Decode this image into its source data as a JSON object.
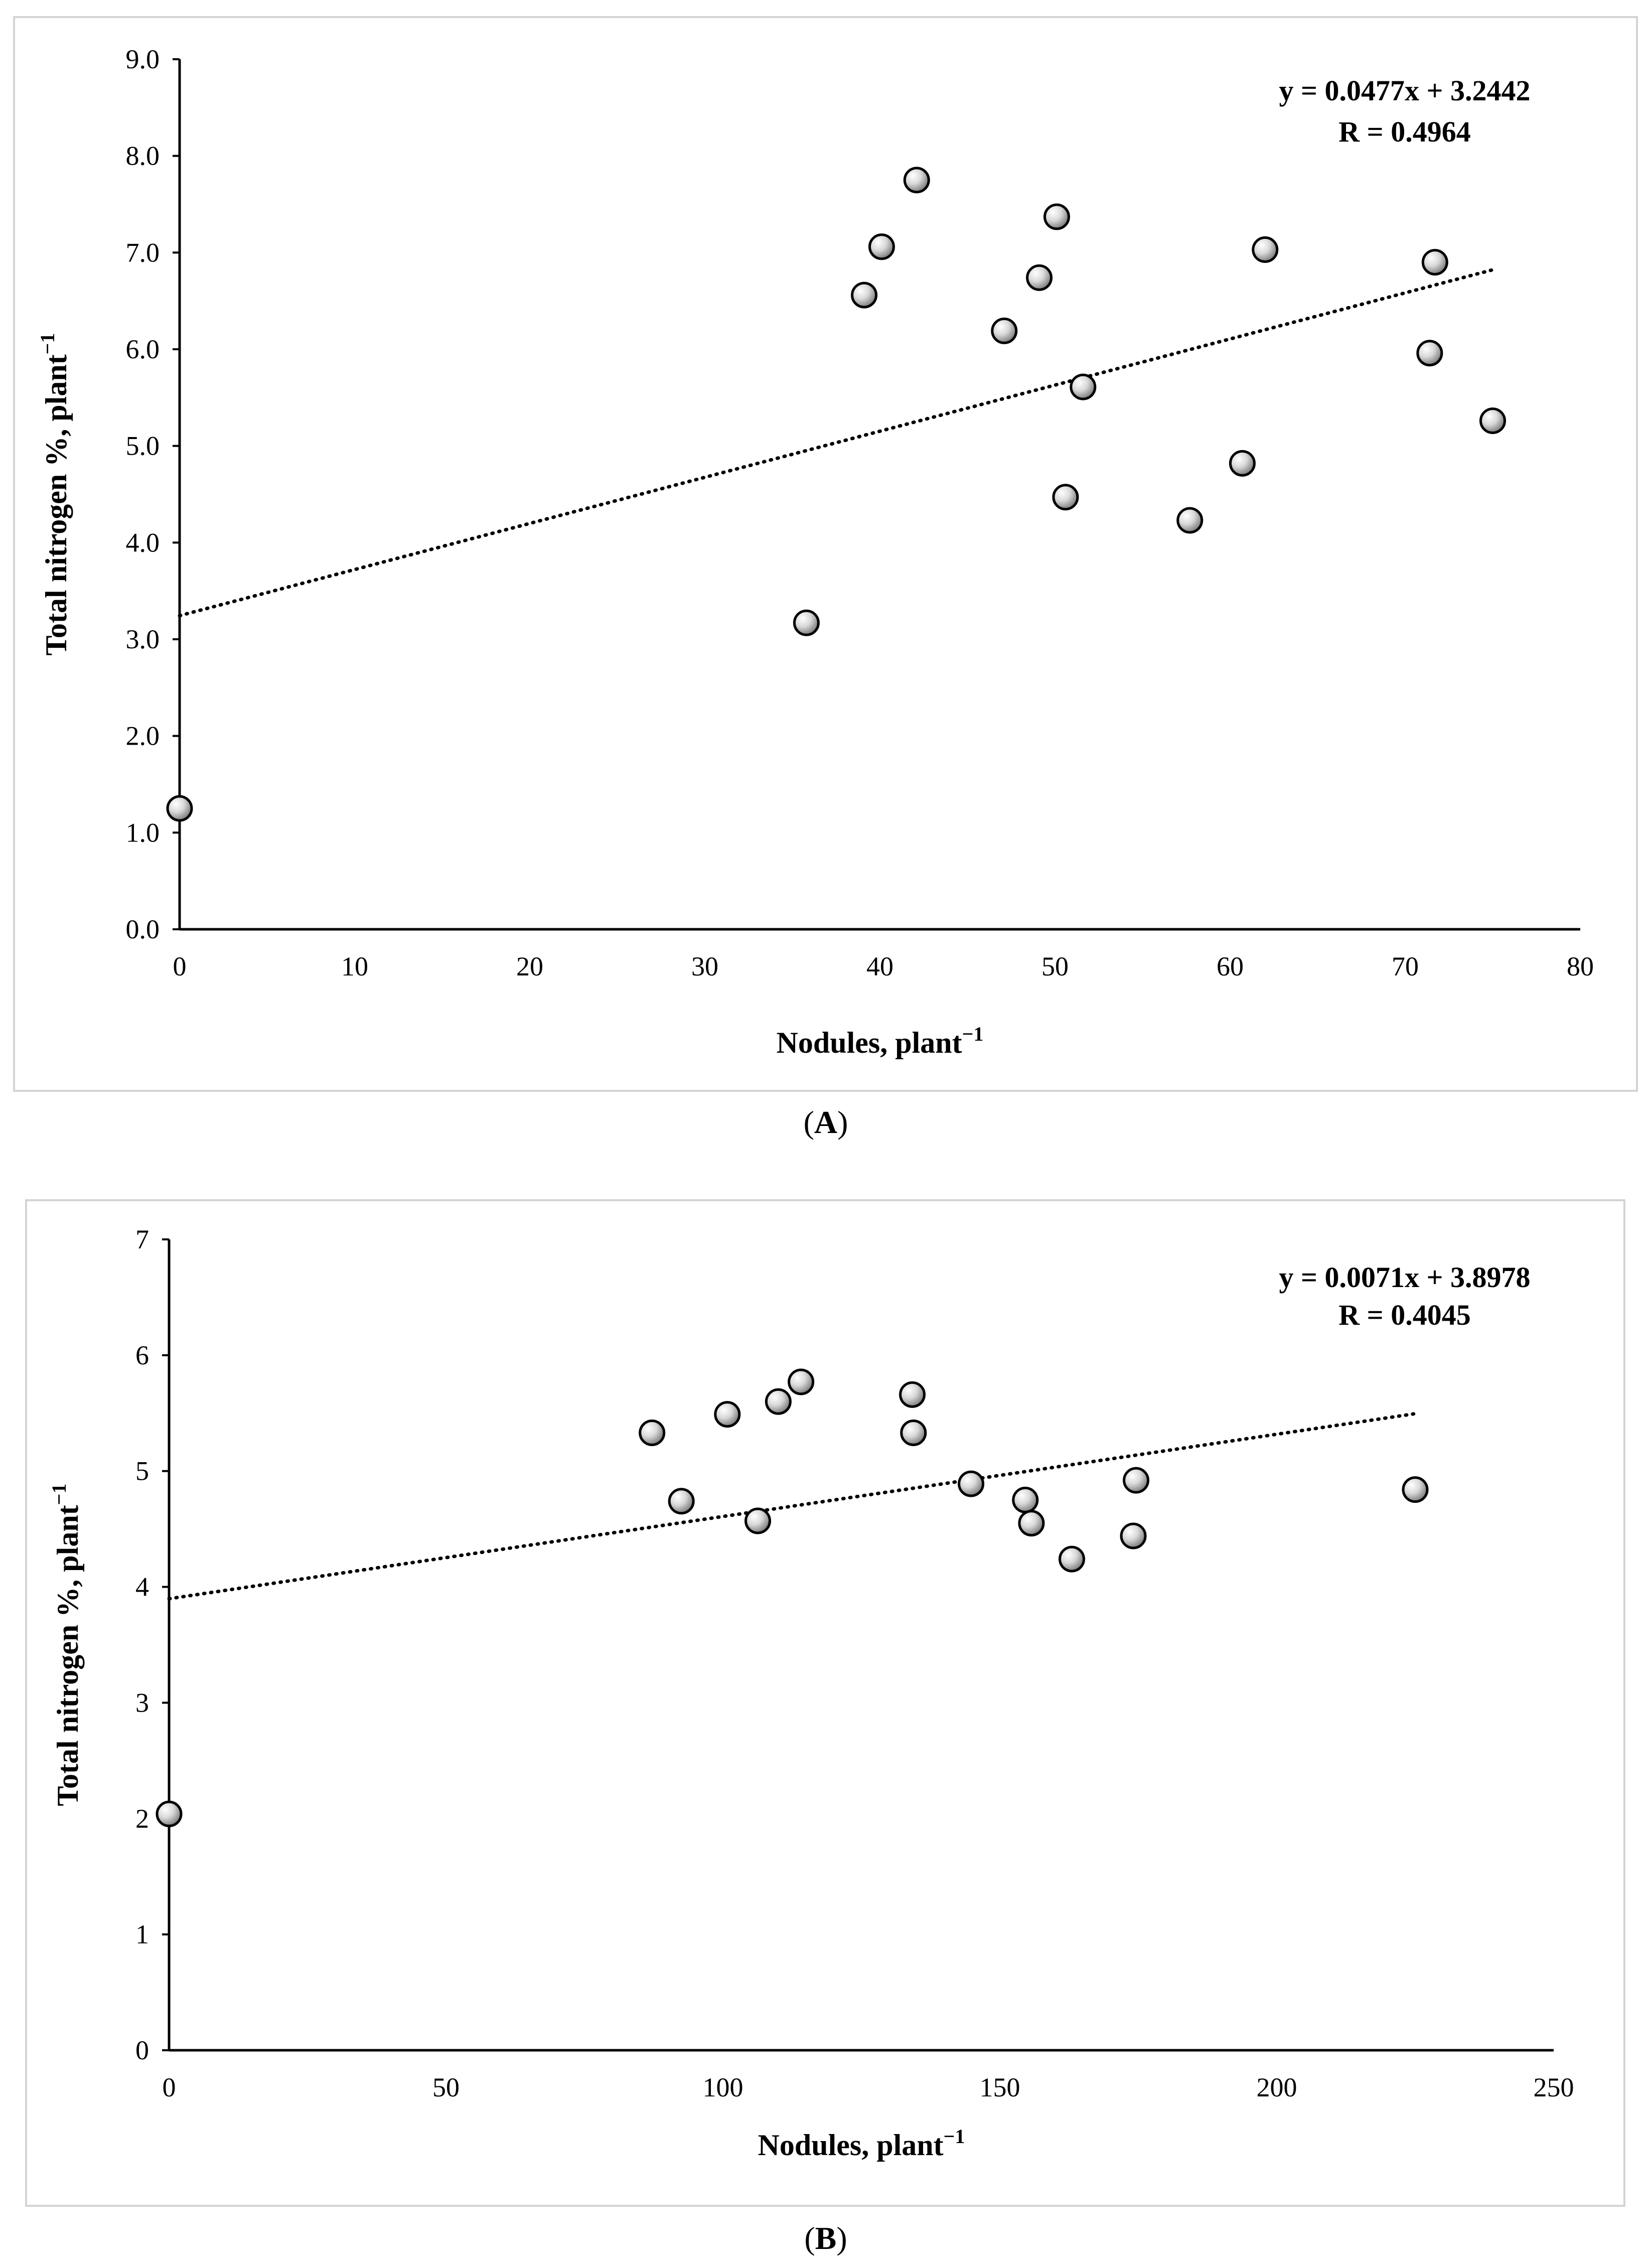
{
  "colors": {
    "marker_fill_light": "#f2f2f2",
    "marker_fill_dark": "#7a7a7a",
    "axis": "#000000",
    "frame": "#d4d4d4"
  },
  "chart_data": [
    {
      "id": "A",
      "type": "scatter",
      "panel_label": "(A)",
      "panel_letter": "A",
      "xlabel": "Nodules, plant",
      "ylabel": "Total nitrogen %, plant",
      "unit_superscript": "−1",
      "xlim": [
        0,
        80
      ],
      "ylim": [
        0,
        9
      ],
      "xticks": [
        0,
        10,
        20,
        30,
        40,
        50,
        60,
        70,
        80
      ],
      "xtick_labels": [
        "0",
        "10",
        "20",
        "30",
        "40",
        "50",
        "60",
        "70",
        "80"
      ],
      "yticks": [
        0,
        1,
        2,
        3,
        4,
        5,
        6,
        7,
        8,
        9
      ],
      "ytick_labels": [
        "0.0",
        "1.0",
        "2.0",
        "3.0",
        "4.0",
        "5.0",
        "6.0",
        "7.0",
        "8.0",
        "9.0"
      ],
      "equation": "y = 0.0477x + 3.2442",
      "r_label": "R = 0.4964",
      "trendline": {
        "slope": 0.0477,
        "intercept": 3.2442,
        "x_start": 0,
        "x_end": 75
      },
      "points": [
        {
          "x": 0,
          "y": 1.25
        },
        {
          "x": 35.8,
          "y": 3.17
        },
        {
          "x": 39.1,
          "y": 6.56
        },
        {
          "x": 40.1,
          "y": 7.06
        },
        {
          "x": 42.1,
          "y": 7.75
        },
        {
          "x": 47.1,
          "y": 6.19
        },
        {
          "x": 49.1,
          "y": 6.74
        },
        {
          "x": 50.1,
          "y": 7.37
        },
        {
          "x": 50.6,
          "y": 4.47
        },
        {
          "x": 51.6,
          "y": 5.61
        },
        {
          "x": 57.7,
          "y": 4.23
        },
        {
          "x": 60.7,
          "y": 4.82
        },
        {
          "x": 62.0,
          "y": 7.03
        },
        {
          "x": 71.4,
          "y": 5.96
        },
        {
          "x": 71.7,
          "y": 6.9
        },
        {
          "x": 75.0,
          "y": 5.26
        }
      ]
    },
    {
      "id": "B",
      "type": "scatter",
      "panel_label": "(B)",
      "panel_letter": "B",
      "xlabel": "Nodules, plant",
      "ylabel": "Total nitrogen %, plant",
      "unit_superscript": "−1",
      "xlim": [
        0,
        250
      ],
      "ylim": [
        0,
        7
      ],
      "xticks": [
        0,
        50,
        100,
        150,
        200,
        250
      ],
      "xtick_labels": [
        "0",
        "50",
        "100",
        "150",
        "200",
        "250"
      ],
      "yticks": [
        0,
        1,
        2,
        3,
        4,
        5,
        6,
        7
      ],
      "ytick_labels": [
        "0",
        "1",
        "2",
        "3",
        "4",
        "5",
        "6",
        "7"
      ],
      "equation": "y = 0.0071x + 3.8978",
      "r_label": "R = 0.4045",
      "trendline": {
        "slope": 0.0071,
        "intercept": 3.8978,
        "x_start": 0,
        "x_end": 225
      },
      "points": [
        {
          "x": 0,
          "y": 2.04
        },
        {
          "x": 87.2,
          "y": 5.33
        },
        {
          "x": 92.5,
          "y": 4.74
        },
        {
          "x": 100.8,
          "y": 5.49
        },
        {
          "x": 106.3,
          "y": 4.57
        },
        {
          "x": 110.0,
          "y": 5.6
        },
        {
          "x": 114.1,
          "y": 5.77
        },
        {
          "x": 134.2,
          "y": 5.66
        },
        {
          "x": 134.4,
          "y": 5.33
        },
        {
          "x": 144.8,
          "y": 4.89
        },
        {
          "x": 154.6,
          "y": 4.75
        },
        {
          "x": 155.7,
          "y": 4.55
        },
        {
          "x": 163.0,
          "y": 4.24
        },
        {
          "x": 174.1,
          "y": 4.44
        },
        {
          "x": 174.6,
          "y": 4.92
        },
        {
          "x": 225.0,
          "y": 4.84
        }
      ]
    }
  ]
}
